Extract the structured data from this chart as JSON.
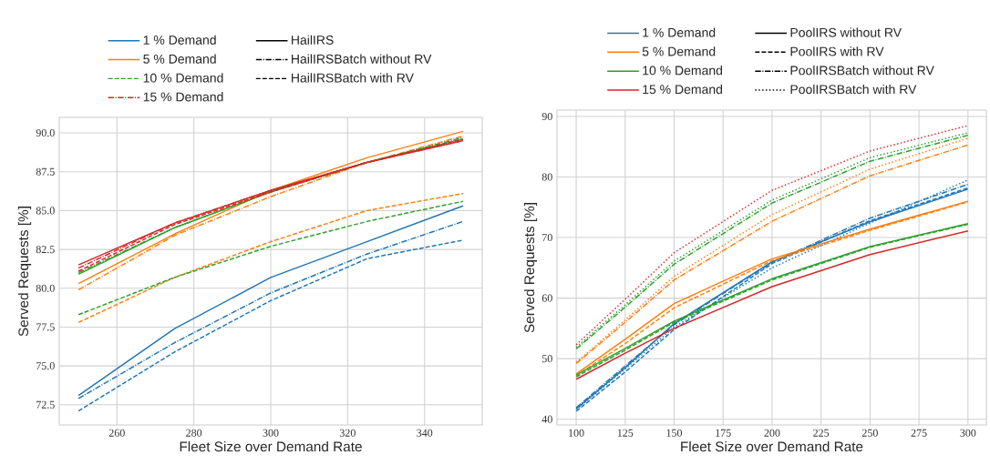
{
  "chart_data": [
    {
      "type": "line",
      "xlabel": "Fleet Size over Demand Rate",
      "ylabel": "Served Requests [%]",
      "grid": true,
      "legend": "top",
      "x": [
        250,
        275,
        300,
        325,
        350
      ],
      "xlim": [
        245,
        355
      ],
      "xticks": [
        260,
        280,
        300,
        320,
        340
      ],
      "ylim": [
        71.2,
        91.0
      ],
      "yticks": [
        {
          "value": 72.5,
          "label": "72.5"
        },
        {
          "value": 75,
          "label": "75.0"
        },
        {
          "value": 77.5,
          "label": "77.5"
        },
        {
          "value": 80,
          "label": "80.0"
        },
        {
          "value": 82.5,
          "label": "82.5"
        },
        {
          "value": 85,
          "label": "85.0"
        },
        {
          "value": 87.5,
          "label": "87.5"
        },
        {
          "value": 90,
          "label": "90.0"
        }
      ],
      "annotations": [
        "HailIRS",
        "HailIRSBatch without RV",
        "HailIRSBatch with RV"
      ],
      "series": [
        {
          "name": "1 % Demand",
          "color": "#1f77b4",
          "line_style": "solid",
          "values": [
            73.1,
            77.4,
            80.7,
            83.0,
            85.3
          ]
        },
        {
          "color": "#1f77b4",
          "line_style": "dashdot",
          "values": [
            72.9,
            76.5,
            79.7,
            82.2,
            84.3
          ]
        },
        {
          "color": "#1f77b4",
          "line_style": "dashed",
          "values": [
            72.1,
            75.9,
            79.2,
            81.9,
            83.1
          ]
        },
        {
          "name": "5 % Demand",
          "color": "#ff7f0e",
          "line_style": "solid",
          "values": [
            80.3,
            83.5,
            86.3,
            88.4,
            90.1
          ]
        },
        {
          "color": "#ff7f0e",
          "line_style": "dashdot",
          "values": [
            79.9,
            83.4,
            85.9,
            88.1,
            89.8
          ]
        },
        {
          "color": "#ff7f0e",
          "line_style": "dashed",
          "values": [
            77.8,
            80.7,
            83.0,
            85.0,
            86.1
          ]
        },
        {
          "color": "#2ca02c",
          "line_style": "solid",
          "values": [
            80.9,
            83.9,
            86.2,
            88.1,
            89.6
          ]
        },
        {
          "color": "#2ca02c",
          "line_style": "dashdot",
          "values": [
            81.0,
            83.9,
            86.2,
            88.1,
            89.7
          ]
        },
        {
          "name": "10 % Demand",
          "color": "#2ca02c",
          "line_style": "dashed",
          "values": [
            78.3,
            80.7,
            82.7,
            84.3,
            85.6
          ]
        },
        {
          "color": "#d62728",
          "line_style": "solid",
          "values": [
            81.5,
            84.2,
            86.3,
            88.1,
            89.5
          ]
        },
        {
          "name": "15 % Demand",
          "color": "#d62728",
          "line_style": "dashdot",
          "values": [
            81.3,
            84.2,
            86.3,
            88.1,
            89.5
          ]
        },
        {
          "color": "#d62728",
          "line_style": "dashed",
          "values": [
            81.1,
            84.1,
            86.2,
            88.1,
            89.6
          ]
        }
      ]
    },
    {
      "type": "line",
      "xlabel": "Fleet Size over Demand Rate",
      "ylabel": "Served Requests [%]",
      "grid": true,
      "legend": "top",
      "x": [
        100,
        125,
        150,
        200,
        250,
        300
      ],
      "xlim": [
        90.2,
        309.4
      ],
      "xticks": [
        100,
        125,
        150,
        175,
        200,
        225,
        250,
        275,
        300
      ],
      "ylim": [
        39.05,
        91.05
      ],
      "yticks": [
        40,
        50,
        60,
        70,
        80,
        90
      ],
      "annotations": [
        "PoolIRS without RV",
        "PoolIRS with RV",
        "PoolIRSBatch without RV",
        "PoolIRSBatch with RV"
      ],
      "series": [
        {
          "name": "1 % Demand",
          "color": "#1f77b4",
          "line_style": "solid",
          "values": [
            41.7,
            48.5,
            55.8,
            66.0,
            72.6,
            78.0
          ]
        },
        {
          "color": "#1f77b4",
          "line_style": "dashed",
          "values": [
            41.3,
            47.8,
            54.8,
            65.7,
            72.8,
            78.2
          ]
        },
        {
          "color": "#1f77b4",
          "line_style": "dashdot",
          "values": [
            41.9,
            48.8,
            55.6,
            65.9,
            73.2,
            78.8
          ]
        },
        {
          "color": "#1f77b4",
          "line_style": "dotted",
          "values": [
            41.6,
            48.3,
            55.2,
            65.0,
            72.4,
            79.5
          ]
        },
        {
          "name": "5 % Demand",
          "color": "#ff7f0e",
          "line_style": "solid",
          "values": [
            47.5,
            53.2,
            59.1,
            66.5,
            71.4,
            76.0
          ]
        },
        {
          "color": "#ff7f0e",
          "line_style": "dashed",
          "values": [
            47.2,
            52.5,
            58.4,
            66.2,
            71.2,
            75.9
          ]
        },
        {
          "color": "#ff7f0e",
          "line_style": "dashdot",
          "values": [
            49.2,
            56.0,
            63.0,
            72.7,
            80.2,
            85.3
          ]
        },
        {
          "color": "#ff7f0e",
          "line_style": "dotted",
          "values": [
            49.4,
            56.4,
            63.6,
            73.8,
            81.3,
            86.4
          ]
        },
        {
          "name": "10 % Demand",
          "color": "#2ca02c",
          "line_style": "solid",
          "values": [
            47.3,
            51.7,
            56.2,
            63.2,
            68.5,
            72.3
          ]
        },
        {
          "color": "#2ca02c",
          "line_style": "dashed",
          "values": [
            47.0,
            51.4,
            56.0,
            63.0,
            68.4,
            72.2
          ]
        },
        {
          "color": "#2ca02c",
          "line_style": "dashdot",
          "values": [
            51.6,
            58.5,
            65.6,
            75.7,
            82.6,
            86.9
          ]
        },
        {
          "color": "#2ca02c",
          "line_style": "dotted",
          "values": [
            51.9,
            58.9,
            66.1,
            76.2,
            83.2,
            87.3
          ]
        },
        {
          "name": "15 % Demand",
          "color": "#d62728",
          "line_style": "solid",
          "values": [
            46.6,
            50.9,
            55.0,
            61.9,
            67.2,
            71.1
          ]
        },
        {
          "color": "#d62728",
          "line_style": "dotted",
          "values": [
            52.3,
            59.8,
            67.5,
            77.8,
            84.3,
            88.5
          ]
        }
      ]
    }
  ]
}
